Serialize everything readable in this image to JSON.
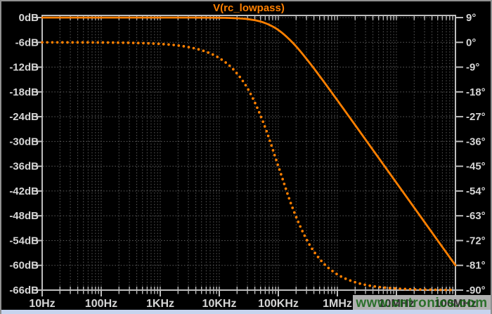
{
  "title": "V(rc_lowpass)",
  "watermark": {
    "text": "www.cntronics.com",
    "overlaps_labels": [
      "10MHz",
      "100MHz"
    ]
  },
  "colors": {
    "trace": "#ff8000",
    "title": "#ff8000",
    "frame": "#bdbdbd",
    "grid": "#5d5d5d",
    "label": "#d6d6d6",
    "label_dark": "#2e2e2e",
    "watermark_text": "#156615",
    "watermark_strip": "#c8c8c8",
    "window_border": "#909090",
    "bottom_bar": "#c7d4ee",
    "background": "#000000"
  },
  "chart_data": {
    "type": "line",
    "title": "V(rc_lowpass)",
    "grid": "dotted",
    "background": "#000000",
    "legend_position": "top-center-title",
    "x_axis": {
      "scale": "log",
      "unit": "Hz",
      "min": 10,
      "max": 100000000,
      "tick_labels": [
        "10Hz",
        "100Hz",
        "1KHz",
        "10KHz",
        "100KHz",
        "1MHz",
        "10MHz",
        "100MHz"
      ]
    },
    "y_axis_left": {
      "unit": "dB",
      "max": 0,
      "min": -66,
      "step": -6,
      "tick_labels": [
        "0dB",
        "-6dB",
        "-12dB",
        "-18dB",
        "-24dB",
        "-30dB",
        "-36dB",
        "-42dB",
        "-48dB",
        "-54dB",
        "-60dB",
        "-66dB"
      ]
    },
    "y_axis_right": {
      "unit": "degrees",
      "max": 9,
      "min": -90,
      "step": -9,
      "tick_labels": [
        "9°",
        "0°",
        "-9°",
        "-18°",
        "-27°",
        "-36°",
        "-45°",
        "-54°",
        "-63°",
        "-72°",
        "-81°",
        "-90°"
      ]
    },
    "cutoff_frequency_hz": 100000,
    "rolloff": "-20dB/decade first-order RC low-pass",
    "series": [
      {
        "name": "V(rc_lowpass) magnitude",
        "axis": "left",
        "unit": "dB",
        "line_style": "solid",
        "color": "#ff8000",
        "log10_f": [
          1,
          1.25,
          1.5,
          1.75,
          2,
          2.25,
          2.5,
          2.75,
          3,
          3.25,
          3.5,
          3.75,
          4,
          4.25,
          4.5,
          4.75,
          5,
          5.25,
          5.5,
          5.75,
          6,
          6.25,
          6.5,
          6.75,
          7,
          7.25,
          7.5,
          7.75,
          8
        ],
        "values": [
          0,
          0,
          0,
          0,
          0,
          0,
          0,
          0,
          0,
          -0.001,
          -0.004,
          -0.014,
          -0.043,
          -0.135,
          -0.414,
          -1.193,
          -3.01,
          -6.193,
          -10.414,
          -15.135,
          -20.043,
          -25.014,
          -30.004,
          -35.001,
          -40,
          -45,
          -50,
          -55,
          -60
        ]
      },
      {
        "name": "V(rc_lowpass) phase",
        "axis": "right",
        "unit": "deg",
        "line_style": "dotted",
        "color": "#ff8000",
        "log10_f": [
          1,
          1.25,
          1.5,
          1.75,
          2,
          2.25,
          2.5,
          2.75,
          3,
          3.25,
          3.5,
          3.75,
          4,
          4.25,
          4.5,
          4.75,
          5,
          5.25,
          5.5,
          5.75,
          6,
          6.25,
          6.5,
          6.75,
          7,
          7.25,
          7.5,
          7.75,
          8
        ],
        "values": [
          -0.006,
          -0.01,
          -0.018,
          -0.032,
          -0.057,
          -0.102,
          -0.181,
          -0.322,
          -0.573,
          -1.019,
          -1.811,
          -3.218,
          -5.711,
          -10.084,
          -17.525,
          -29.342,
          -45,
          -60.648,
          -72.445,
          -79.916,
          -84.289,
          -86.781,
          -88.188,
          -88.981,
          -89.427,
          -89.678,
          -89.819,
          -89.898,
          -89.943
        ]
      }
    ]
  }
}
